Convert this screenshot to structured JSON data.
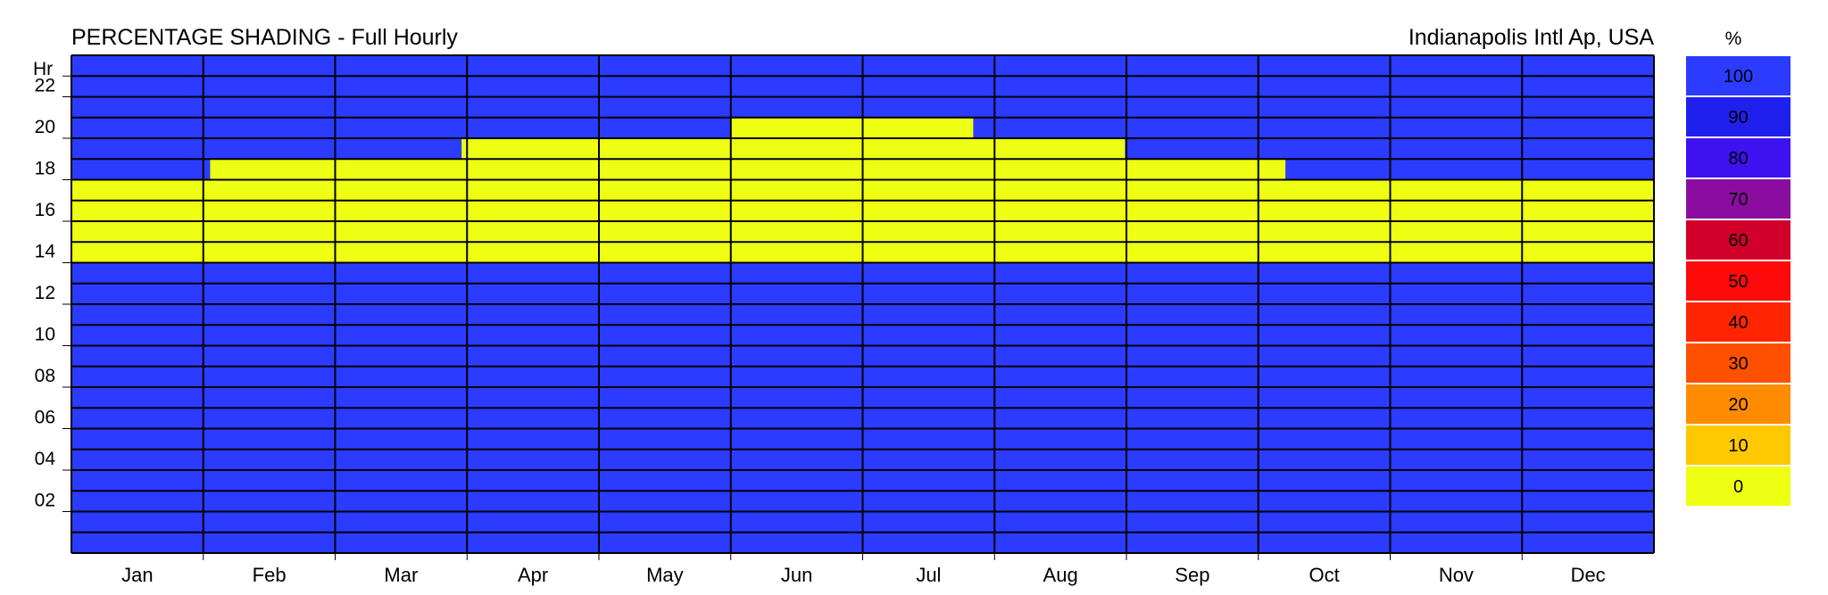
{
  "chart_data": {
    "type": "heatmap",
    "title": "PERCENTAGE SHADING - Full Hourly",
    "location": "Indianapolis Intl Ap, USA",
    "y_axis_label": "Hr",
    "y_tick_labels": [
      "22",
      "20",
      "18",
      "16",
      "14",
      "12",
      "10",
      "08",
      "06",
      "04",
      "02"
    ],
    "months": [
      "Jan",
      "Feb",
      "Mar",
      "Apr",
      "May",
      "Jun",
      "Jul",
      "Aug",
      "Sep",
      "Oct",
      "Nov",
      "Dec"
    ],
    "hours_per_day": 24,
    "days_per_year": 365,
    "default_value": 100,
    "unshaded_periods": [
      {
        "hour_start": 14,
        "hour_end": 18,
        "day_start": 0,
        "day_end": 365,
        "value": 0
      },
      {
        "hour_start": 18,
        "hour_end": 19,
        "day_start": 32,
        "day_end": 280,
        "value": 0
      },
      {
        "hour_start": 19,
        "hour_end": 20,
        "day_start": 90,
        "day_end": 243,
        "value": 0
      },
      {
        "hour_start": 20,
        "hour_end": 21,
        "day_start": 152,
        "day_end": 208,
        "value": 0
      }
    ],
    "legend": {
      "title": "%",
      "entries": [
        {
          "label": "100",
          "color": "#2b3bff"
        },
        {
          "label": "90",
          "color": "#2020ee"
        },
        {
          "label": "80",
          "color": "#3e12f0"
        },
        {
          "label": "70",
          "color": "#8a0da0"
        },
        {
          "label": "60",
          "color": "#d1002a"
        },
        {
          "label": "50",
          "color": "#ff0a0a"
        },
        {
          "label": "40",
          "color": "#ff2500"
        },
        {
          "label": "30",
          "color": "#ff5000"
        },
        {
          "label": "20",
          "color": "#ff8c00"
        },
        {
          "label": "10",
          "color": "#ffc800"
        },
        {
          "label": "0",
          "color": "#eeff14"
        }
      ]
    },
    "colors": {
      "shaded": "#2b3bff",
      "unshaded": "#eeff14",
      "grid": "#000000"
    }
  }
}
